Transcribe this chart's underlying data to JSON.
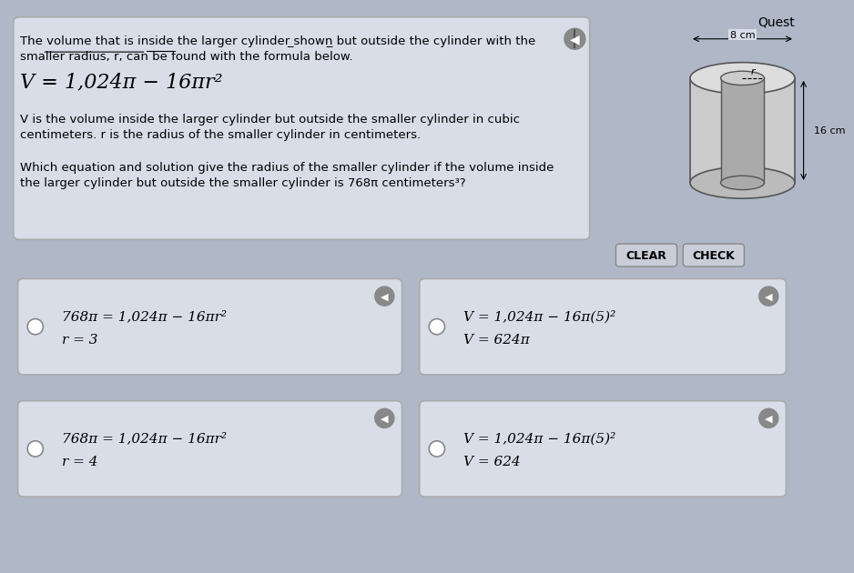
{
  "bg_color": "#b0b8c8",
  "top_panel_bg": "#d8dde8",
  "top_panel_border": "#aaaaaa",
  "answer_box_bg": "#d8dde8",
  "answer_box_border": "#aaaaaa",
  "title_text": "Quest",
  "top_text_line1": "The volume that is inside the larger cylinder ̲shown̲ but outside the cylinder with the",
  "top_text_line2": "smaller radius, r, can be found with the formula below.",
  "formula_main": "V = 1,024π − 16πr²",
  "desc_line1": "V is the volume inside the larger cylinder but outside the smaller cylinder in cubic",
  "desc_line2": "centimeters. r is the radius of the smaller cylinder in centimeters.",
  "question_line1": "Which equation and solution give the radius of the smaller cylinder if the volume inside",
  "question_line2": "the larger cylinder but outside the smaller cylinder is 768π centimeters³?",
  "clear_btn": "CLEAR",
  "check_btn": "CHECK",
  "box1_line1": "768π = 1,024π − 16πr²",
  "box1_line2": "r = 3",
  "box2_line1": "V = 1,024π − 16π(5)²",
  "box2_line2": "V = 624π",
  "box3_line1": "768π = 1,024π − 16πr²",
  "box3_line2": "r = 4",
  "box4_line1": "V = 1,024π − 16π(5)²",
  "box4_line2": "V = 624",
  "cylinder_8cm": "8 cm",
  "cylinder_r": "r",
  "cylinder_16cm": "16 cm"
}
